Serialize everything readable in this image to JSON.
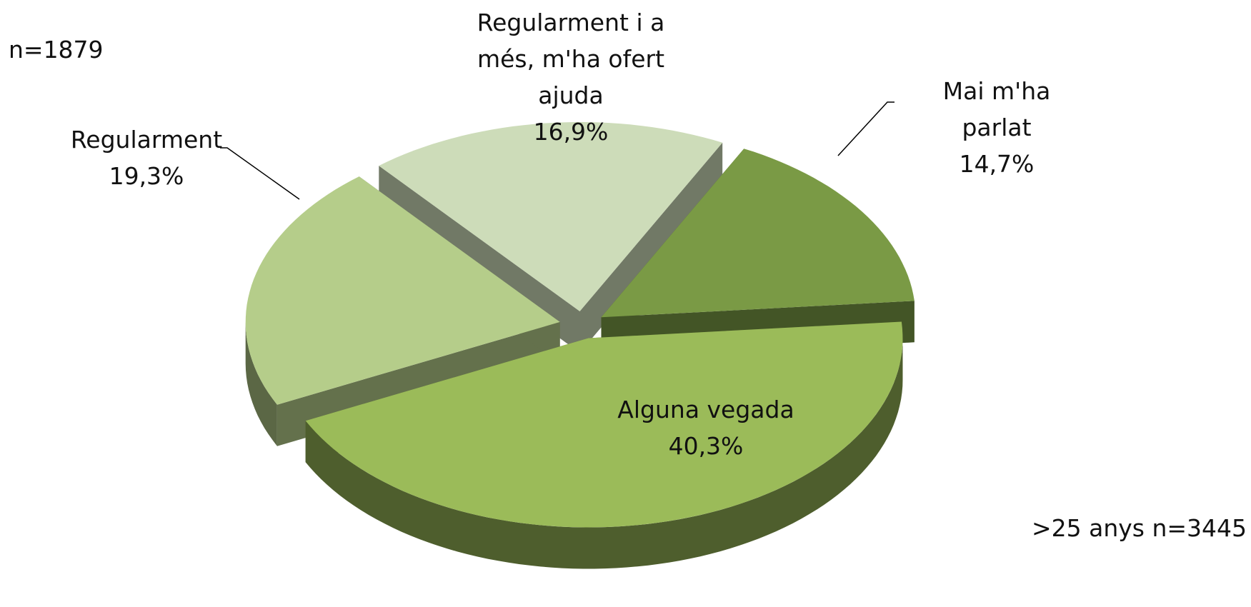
{
  "chart_data": {
    "type": "pie",
    "categories": [
      "Mai m'ha parlat",
      "Alguna vegada",
      "Regularment",
      "Regularment i a més, m'ha ofert ajuda"
    ],
    "values": [
      14.7,
      40.3,
      19.3,
      16.9
    ],
    "value_labels": [
      "14,7%",
      "40,3%",
      "19,3%",
      "16,9%"
    ],
    "colors": [
      "#7a9a45",
      "#9bbb59",
      "#b5cd8a",
      "#cddcb9"
    ],
    "annotations": [
      "n=1879",
      ">25 anys n=3445"
    ]
  }
}
